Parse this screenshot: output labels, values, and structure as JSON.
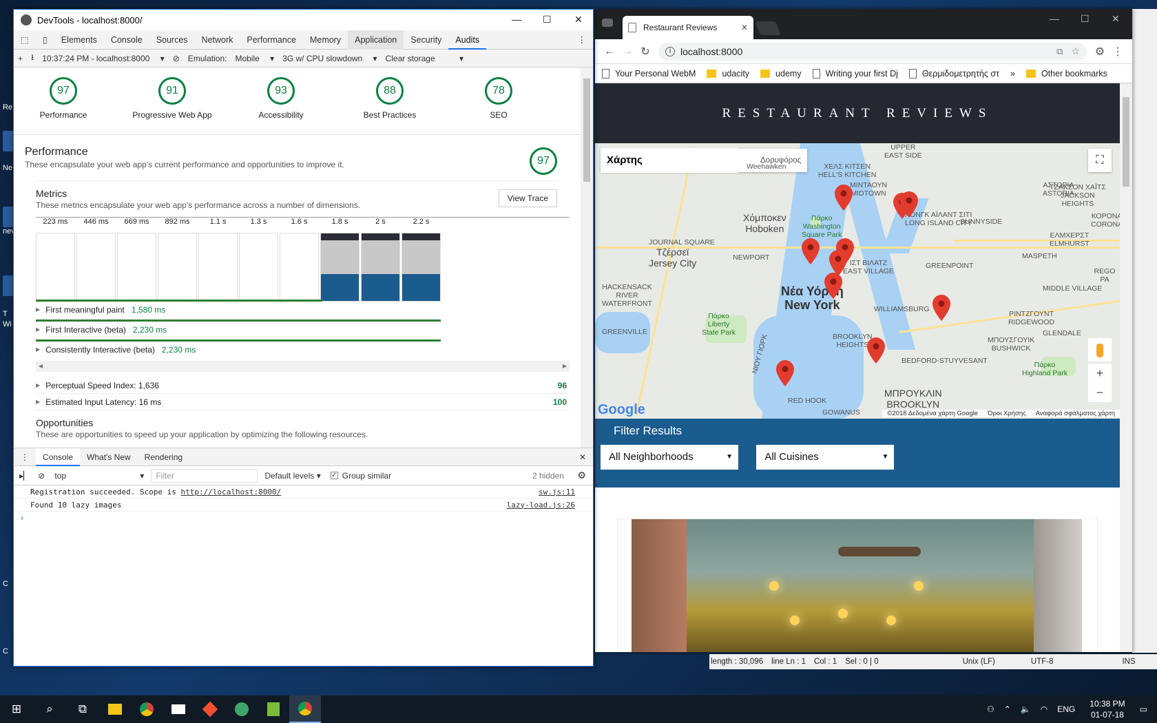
{
  "devtools": {
    "window_title": "DevTools - localhost:8000/",
    "tabs": [
      "Elements",
      "Console",
      "Sources",
      "Network",
      "Performance",
      "Memory",
      "Application",
      "Security",
      "Audits"
    ],
    "active_tab": "Audits",
    "toolbar": {
      "report_time": "10:37:24 PM - localhost:8000",
      "emulation_label": "Emulation:",
      "emulation_value": "Mobile",
      "throttling": "3G w/ CPU slowdown",
      "clear_storage": "Clear storage"
    },
    "gauges": [
      {
        "score": "97",
        "label": "Performance"
      },
      {
        "score": "91",
        "label": "Progressive Web App"
      },
      {
        "score": "93",
        "label": "Accessibility"
      },
      {
        "score": "88",
        "label": "Best Practices"
      },
      {
        "score": "78",
        "label": "SEO"
      }
    ],
    "performance": {
      "title": "Performance",
      "description": "These encapsulate your web app's current performance and opportunities to improve it.",
      "score": "97"
    },
    "metrics": {
      "title": "Metrics",
      "description": "These metrics encapsulate your web app's performance across a number of dimensions.",
      "view_trace": "View Trace",
      "filmstrip": [
        "223 ms",
        "446 ms",
        "669 ms",
        "892 ms",
        "1.1 s",
        "1.3 s",
        "1.6 s",
        "1.8 s",
        "2 s",
        "2.2 s"
      ],
      "lines": [
        {
          "label": "First meaningful paint",
          "value": "1,580 ms",
          "fraction": 0.708
        },
        {
          "label": "First Interactive (beta)",
          "value": "2,230 ms",
          "fraction": 1.0
        },
        {
          "label": "Consistently Interactive (beta)",
          "value": "2,230 ms",
          "fraction": 1.0
        }
      ],
      "scored": [
        {
          "label": "Perceptual Speed Index: 1,636",
          "score": "96"
        },
        {
          "label": "Estimated Input Latency: 16 ms",
          "score": "100"
        }
      ]
    },
    "opportunities": {
      "title": "Opportunities",
      "description": "These are opportunities to speed up your application by optimizing the following resources."
    },
    "drawer": {
      "tabs": [
        "Console",
        "What's New",
        "Rendering"
      ],
      "context": "top",
      "filter_placeholder": "Filter",
      "levels": "Default levels",
      "group_similar": "Group similar",
      "hidden": "2 hidden",
      "logs": [
        {
          "text": "Registration succeeded. Scope is ",
          "link": "http://localhost:8000/",
          "source": "sw.js:11"
        },
        {
          "text": "Found 10 lazy images",
          "link": "",
          "source": "lazy-load.js:26"
        }
      ]
    }
  },
  "chrome": {
    "tab_title": "Restaurant Reviews",
    "url": "localhost:8000",
    "bookmarks": [
      "Your Personal WebM",
      "udacity",
      "udemy",
      "Writing your first Dj",
      "Θερμιδομετρητής στ",
      "»",
      "Other bookmarks"
    ],
    "page": {
      "header": "RESTAURANT REVIEWS",
      "map_buttons": [
        "Χάρτης",
        "Δορυφόρος"
      ],
      "map_labels": {
        "weehawken": "Weehawken",
        "hoboken": "Χόμποκεν\nHoboken",
        "jersey": "Τζέρσεϊ\nJersey City",
        "newyork": "Νέα Υόρκη\nNew York",
        "washington": "Πάρκο\nWashington\nSquare Park",
        "liberty": "Πάρκο\nLiberty\nState Park",
        "brooklyn": "ΜΠΡΟΥΚΛΙΝ\nBROOKLYN",
        "williamsburg": "WILLIAMSBURG",
        "greenpoint": "GREENPOINT",
        "bedford": "BEDFORD-STUYVESANT",
        "redhook": "RED HOOK",
        "gowanus": "GOWANUS",
        "astoria": "ΑΣΤΟΡΙΑ\nASTORIA",
        "sunnyside": "SUNNYSIDE",
        "maspeth": "MASPETH",
        "hellskitchen": "ΧΕΛΣ ΚΙΤΣΕΝ\nHELL'S KITCHEN",
        "lic": "ΛΟΝΓΚ ΑΪΛΑΝΤ ΣΙΤΙ\nLONG ISLAND CITY",
        "journal": "JOURNAL SQUARE",
        "newport": "NEWPORT",
        "hackensack": "HACKENSACK\nRIVER\nWATERFRONT",
        "greenville": "GREENVILLE",
        "bushwick": "ΜΠΟΥΣΓΟΥΙΚ\nBUSHWICK",
        "highland": "Πάρκο\nHighland Park",
        "glendale": "GLENDALE",
        "middle": "MIDDLE VILLAGE",
        "ridgewood": "PINTZΓΟΥΝΤ\nRIDGEWOOD",
        "elmhurst": "ΕΛΜΧΕΡΣΤ\nELMHURST",
        "rego": "REGO PA",
        "corona": "ΚΟΡΟΝΑ\nCORONA",
        "jackson": "ΤΖΑΚΣΟΝ ΧΑΪΤΣ\nJACKSON\nHEIGHTS",
        "upper": "UPPER\nEAST SIDE",
        "bk_heights": "BROOKLYN\nHEIGHTS",
        "east_village": "ΙΣΤ ΒΙΛΑΤΖ\nEAST VILLAGE",
        "midtown": "ΜΙΝΤΑΟΥΝ\nMIDTOWN",
        "bay": "ΝΙΟΥ ΓΙΟΡΚ"
      },
      "map_footer": [
        "©2018 Δεδομένα χάρτη Google",
        "Όροι Χρήσης",
        "Αναφορά σφάλματος χάρτη"
      ],
      "google": "Google",
      "filter_title": "Filter Results",
      "neighborhood": "All Neighborhoods",
      "cuisine": "All Cuisines"
    }
  },
  "status_strip": {
    "length": "length : 30,096",
    "line": "line Ln : 1",
    "col": "Col : 1",
    "sel": "Sel : 0 | 0",
    "eol": "Unix (LF)",
    "enc": "UTF-8",
    "mode": "INS"
  },
  "taskbar": {
    "lang": "ENG",
    "time": "10:38 PM",
    "date": "01-07-18"
  },
  "desktop_labels": [
    "Re",
    "Ne",
    "nev",
    "T",
    "Wi",
    "C",
    "C"
  ]
}
